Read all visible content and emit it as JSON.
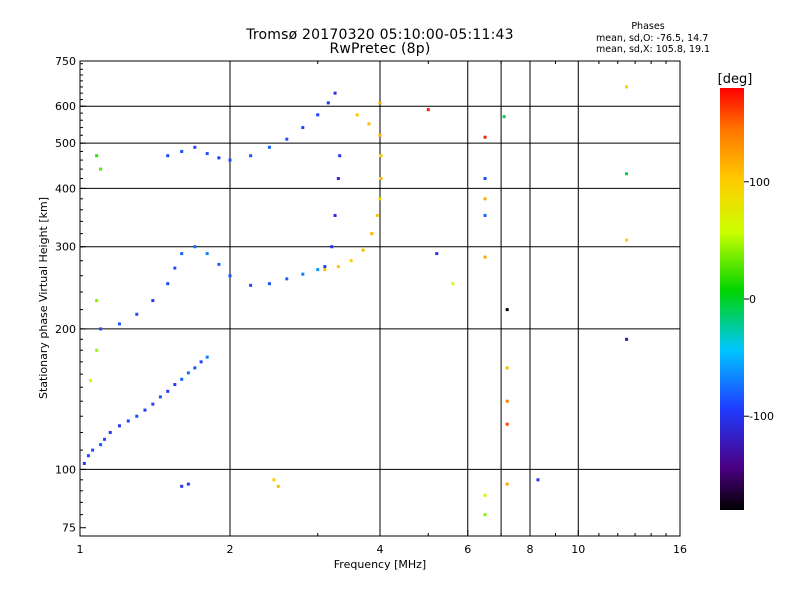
{
  "chart_data": {
    "type": "scatter",
    "title": "Tromsø 20170320 05:10:00-05:11:43",
    "subtitle": "RwPretec (8p)",
    "xlabel": "Frequency [MHz]",
    "ylabel": "Stationary phase Virtual Height [km]",
    "x_scale": "log",
    "y_scale": "log",
    "xlim": [
      1,
      16
    ],
    "ylim": [
      72,
      750
    ],
    "x_ticks": [
      1,
      2,
      4,
      6,
      8,
      10,
      16
    ],
    "y_ticks": [
      75,
      100,
      200,
      300,
      400,
      500,
      600,
      750
    ],
    "x_gridlines": [
      2,
      4,
      6,
      7,
      8,
      10
    ],
    "y_gridlines": [
      100,
      200,
      300,
      400,
      500,
      600
    ],
    "colorbar": {
      "label": "[deg]",
      "ticks": [
        100,
        0,
        -100
      ],
      "range": [
        -180,
        180
      ],
      "colormap": "rainbow-black-to-red"
    },
    "legend": {
      "title": "Phases",
      "lines": [
        "mean, sd,O: -76.5, 14.7",
        "mean, sd,X: 105.8, 19.1"
      ]
    },
    "series": [
      {
        "trace": "E/F1 low-height blue cluster",
        "points": [
          [
            1.02,
            103,
            -95
          ],
          [
            1.04,
            107,
            -90
          ],
          [
            1.06,
            110,
            -88
          ],
          [
            1.1,
            113,
            -85
          ],
          [
            1.12,
            116,
            -90
          ],
          [
            1.15,
            120,
            -95
          ],
          [
            1.2,
            124,
            -100
          ],
          [
            1.25,
            127,
            -92
          ],
          [
            1.3,
            130,
            -88
          ],
          [
            1.35,
            134,
            -95
          ],
          [
            1.4,
            138,
            -90
          ],
          [
            1.45,
            143,
            -85
          ],
          [
            1.5,
            147,
            -100
          ],
          [
            1.55,
            152,
            -92
          ],
          [
            1.6,
            156,
            -80
          ],
          [
            1.65,
            161,
            -75
          ],
          [
            1.7,
            165,
            -85
          ],
          [
            1.75,
            170,
            -90
          ],
          [
            1.8,
            174,
            -70
          ]
        ]
      },
      {
        "trace": "F1 ordinary trace",
        "points": [
          [
            1.1,
            200,
            -90
          ],
          [
            1.2,
            205,
            -85
          ],
          [
            1.3,
            215,
            -88
          ],
          [
            1.4,
            230,
            -95
          ],
          [
            1.5,
            250,
            -90
          ],
          [
            1.55,
            270,
            -85
          ],
          [
            1.6,
            290,
            -80
          ],
          [
            1.7,
            300,
            -75
          ],
          [
            1.8,
            290,
            -70
          ],
          [
            1.9,
            275,
            -80
          ],
          [
            2.0,
            260,
            -85
          ],
          [
            2.2,
            248,
            -90
          ],
          [
            2.4,
            250,
            -85
          ],
          [
            2.6,
            256,
            -80
          ],
          [
            2.8,
            262,
            -70
          ],
          [
            3.0,
            268,
            -60
          ],
          [
            3.1,
            272,
            -95
          ],
          [
            3.2,
            300,
            -100
          ],
          [
            3.25,
            350,
            -105
          ],
          [
            3.3,
            420,
            -110
          ],
          [
            3.32,
            470,
            -100
          ]
        ]
      },
      {
        "trace": "F2 high ordinary trace",
        "points": [
          [
            1.5,
            470,
            -90
          ],
          [
            1.6,
            480,
            -85
          ],
          [
            1.7,
            490,
            -92
          ],
          [
            1.8,
            475,
            -88
          ],
          [
            1.9,
            465,
            -95
          ],
          [
            2.0,
            460,
            -90
          ],
          [
            2.2,
            470,
            -85
          ],
          [
            2.4,
            490,
            -80
          ],
          [
            2.6,
            510,
            -85
          ],
          [
            2.8,
            540,
            -90
          ],
          [
            3.0,
            575,
            -95
          ],
          [
            3.15,
            610,
            -100
          ],
          [
            3.25,
            640,
            -105
          ]
        ]
      },
      {
        "trace": "F2 extraordinary trace",
        "points": [
          [
            3.1,
            268,
            110
          ],
          [
            3.3,
            272,
            105
          ],
          [
            3.5,
            280,
            100
          ],
          [
            3.7,
            295,
            110
          ],
          [
            3.85,
            320,
            115
          ],
          [
            3.95,
            350,
            105
          ],
          [
            4.0,
            380,
            100
          ],
          [
            4.02,
            420,
            110
          ],
          [
            4.02,
            470,
            100
          ],
          [
            4.0,
            520,
            115
          ],
          [
            3.8,
            550,
            110
          ],
          [
            3.6,
            575,
            105
          ],
          [
            4.0,
            610,
            120
          ]
        ]
      },
      {
        "trace": "isolated points",
        "points": [
          [
            1.08,
            470,
            20
          ],
          [
            1.1,
            440,
            30
          ],
          [
            1.08,
            230,
            40
          ],
          [
            1.08,
            180,
            45
          ],
          [
            1.05,
            155,
            60
          ],
          [
            2.45,
            95,
            100
          ],
          [
            2.5,
            92,
            110
          ],
          [
            1.6,
            92,
            -100
          ],
          [
            1.65,
            93,
            -95
          ],
          [
            5.0,
            590,
            170
          ],
          [
            6.5,
            515,
            170
          ],
          [
            6.5,
            420,
            -90
          ],
          [
            6.5,
            380,
            120
          ],
          [
            6.5,
            350,
            -80
          ],
          [
            6.5,
            285,
            120
          ],
          [
            7.1,
            570,
            -10
          ],
          [
            7.2,
            220,
            -180
          ],
          [
            7.2,
            165,
            110
          ],
          [
            7.2,
            140,
            140
          ],
          [
            7.2,
            125,
            160
          ],
          [
            7.2,
            93,
            120
          ],
          [
            6.5,
            88,
            60
          ],
          [
            6.5,
            80,
            40
          ],
          [
            8.3,
            95,
            -100
          ],
          [
            12.5,
            660,
            100
          ],
          [
            12.5,
            430,
            -10
          ],
          [
            12.5,
            310,
            100
          ],
          [
            12.5,
            190,
            -130
          ],
          [
            5.6,
            250,
            60
          ],
          [
            5.2,
            290,
            -100
          ]
        ]
      }
    ]
  }
}
